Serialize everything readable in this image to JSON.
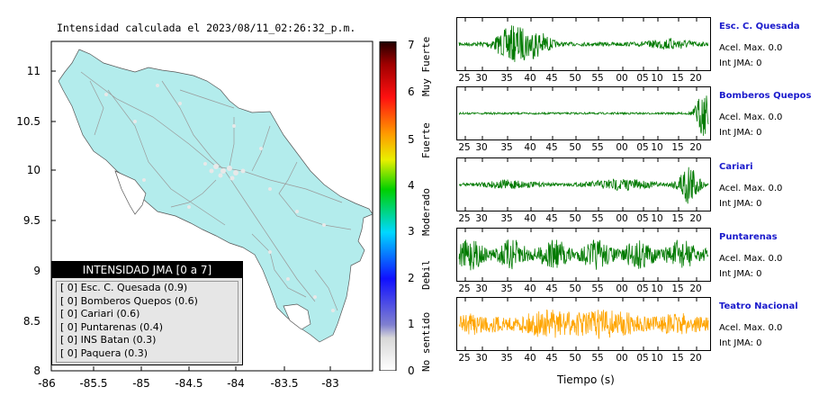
{
  "title": "Intensidad calculada el 2023/08/11_02:26:32_p.m.",
  "map": {
    "y_ticks": [
      "11",
      "10.5",
      "10",
      "9.5",
      "9",
      "8.5",
      "8"
    ],
    "x_ticks": [
      "-86",
      "-85.5",
      "-85",
      "-84.5",
      "-84",
      "-83.5",
      "-83"
    ],
    "land_color": "#b3ecec",
    "sea_color": "#ffffff"
  },
  "colorbar": {
    "ticks": [
      "0",
      "1",
      "2",
      "3",
      "4",
      "5",
      "6",
      "7"
    ],
    "words": [
      "No sentido",
      "Debil",
      "Moderado",
      "Fuerte",
      "Muy Fuerte"
    ]
  },
  "legend": {
    "header": "INTENSIDAD JMA [0 a 7]",
    "items": [
      "[ 0]  Esc. C. Quesada (0.9)",
      "[ 0]  Bomberos Quepos (0.6)",
      "[ 0]  Cariari (0.6)",
      "[ 0]  Puntarenas (0.4)",
      "[ 0]  INS Batan (0.3)",
      "[ 0]  Paquera (0.3)"
    ]
  },
  "chart_data": {
    "type": "line",
    "x_tick_labels": [
      "25",
      "30",
      "35",
      "40",
      "45",
      "50",
      "55",
      "00",
      "05",
      "10",
      "15",
      "20"
    ],
    "xlabel": "Tiempo (s)",
    "series": [
      {
        "name": "Esc. C. Quesada",
        "acel": "Acel. Max. 0.0",
        "int": "Int JMA: 0",
        "color": "#007a00"
      },
      {
        "name": "Bomberos Quepos",
        "acel": "Acel. Max. 0.0",
        "int": "Int JMA: 0",
        "color": "#007a00"
      },
      {
        "name": "Cariari",
        "acel": "Acel. Max. 0.0",
        "int": "Int JMA: 0",
        "color": "#007a00"
      },
      {
        "name": "Puntarenas",
        "acel": "Acel. Max. 0.0",
        "int": "Int JMA: 0",
        "color": "#007a00"
      },
      {
        "name": "Teatro Nacional",
        "acel": "Acel. Max. 0.0",
        "int": "Int JMA: 0",
        "color": "#ffa500"
      }
    ]
  }
}
